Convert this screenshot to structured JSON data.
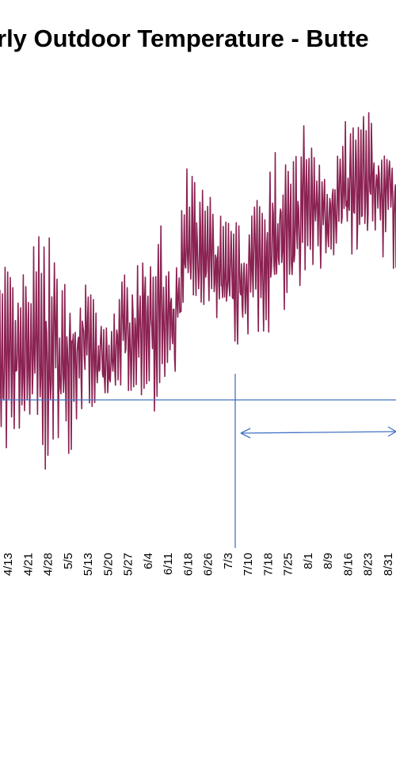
{
  "chart_data": {
    "type": "line",
    "title": "rly Outdoor Temperature - Butte",
    "xlabel": "",
    "ylabel": "",
    "x_tick_labels": [
      "4/13",
      "4/21",
      "4/28",
      "5/5",
      "5/13",
      "5/20",
      "5/27",
      "6/4",
      "6/11",
      "6/18",
      "6/26",
      "7/3",
      "7/10",
      "7/18",
      "7/25",
      "8/1",
      "8/9",
      "8/16",
      "8/23",
      "8/31"
    ],
    "series": [
      {
        "name": "",
        "color": "#8B2252",
        "envelope_days": [
          0,
          5,
          10,
          15,
          20,
          25,
          30,
          35,
          40,
          45,
          50,
          55,
          60,
          65,
          70,
          75,
          80,
          85,
          90,
          95,
          100,
          105,
          110,
          115,
          120,
          125,
          130,
          135,
          140,
          145,
          150,
          155,
          160,
          165,
          170,
          175
        ],
        "envelope_low": [
          42,
          40,
          45,
          42,
          36,
          44,
          41,
          48,
          46,
          48,
          52,
          50,
          50,
          46,
          50,
          62,
          64,
          62,
          58,
          58,
          60,
          60,
          62,
          60,
          68,
          68,
          70,
          71,
          70,
          72,
          72,
          70,
          68,
          66,
          66,
          60
        ],
        "envelope_high": [
          66,
          72,
          68,
          75,
          78,
          72,
          68,
          70,
          66,
          62,
          70,
          70,
          76,
          78,
          70,
          88,
          84,
          82,
          80,
          78,
          82,
          86,
          90,
          88,
          95,
          92,
          90,
          94,
          96,
          97,
          95,
          92,
          88,
          90,
          86,
          92
        ]
      }
    ],
    "reference_line_color": "#4472C4",
    "grid": false,
    "legend": "none"
  }
}
